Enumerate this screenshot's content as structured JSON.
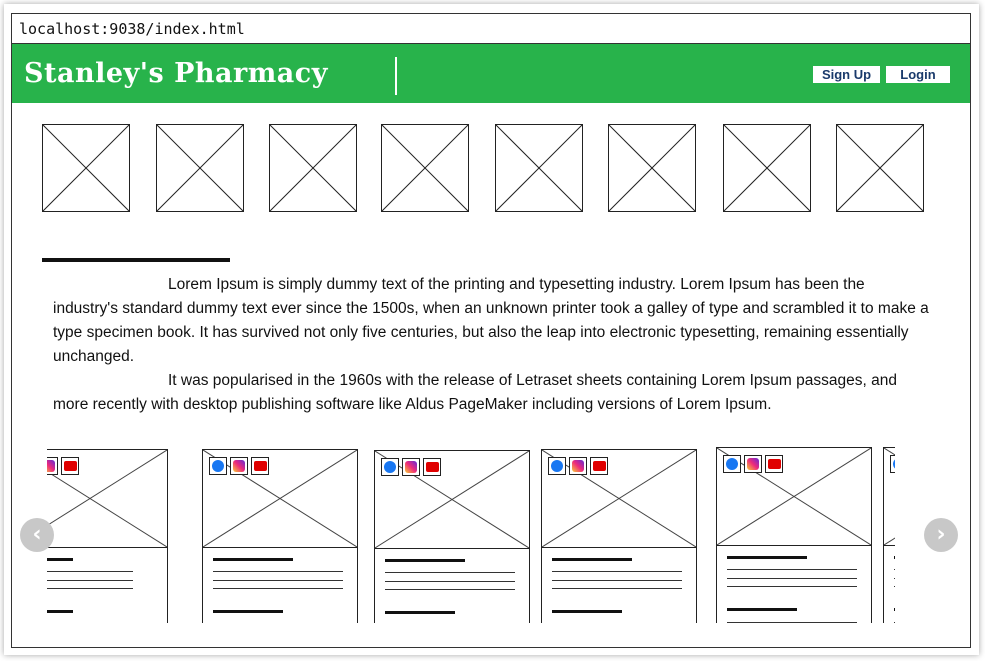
{
  "browser": {
    "url": "localhost:9038/index.html"
  },
  "header": {
    "brand": "Stanley's Pharmacy",
    "signup_label": "Sign Up",
    "login_label": "Login",
    "background_color": "#28b34b"
  },
  "thumbnails": [
    {
      "icon": "image-placeholder-icon"
    },
    {
      "icon": "image-placeholder-icon"
    },
    {
      "icon": "image-placeholder-icon"
    },
    {
      "icon": "image-placeholder-icon"
    },
    {
      "icon": "image-placeholder-icon"
    },
    {
      "icon": "image-placeholder-icon"
    },
    {
      "icon": "image-placeholder-icon"
    },
    {
      "icon": "image-placeholder-icon"
    }
  ],
  "content": {
    "paragraphs": [
      "Lorem Ipsum is simply dummy text of the printing and typesetting industry. Lorem Ipsum has been the industry's standard dummy text ever since the 1500s, when an unknown printer took a galley of type and scrambled it to make a type specimen book. It has survived not only five centuries, but also the leap into electronic typesetting, remaining essentially unchanged.",
      "It was popularised in the 1960s with the release of Letraset sheets containing Lorem Ipsum passages, and more recently with desktop publishing software like Aldus PageMaker including versions of Lorem Ipsum."
    ]
  },
  "carousel": {
    "prev_icon": "chevron-left-icon",
    "next_icon": "chevron-right-icon",
    "social_icons": [
      "facebook-icon",
      "instagram-icon",
      "youtube-icon"
    ]
  }
}
